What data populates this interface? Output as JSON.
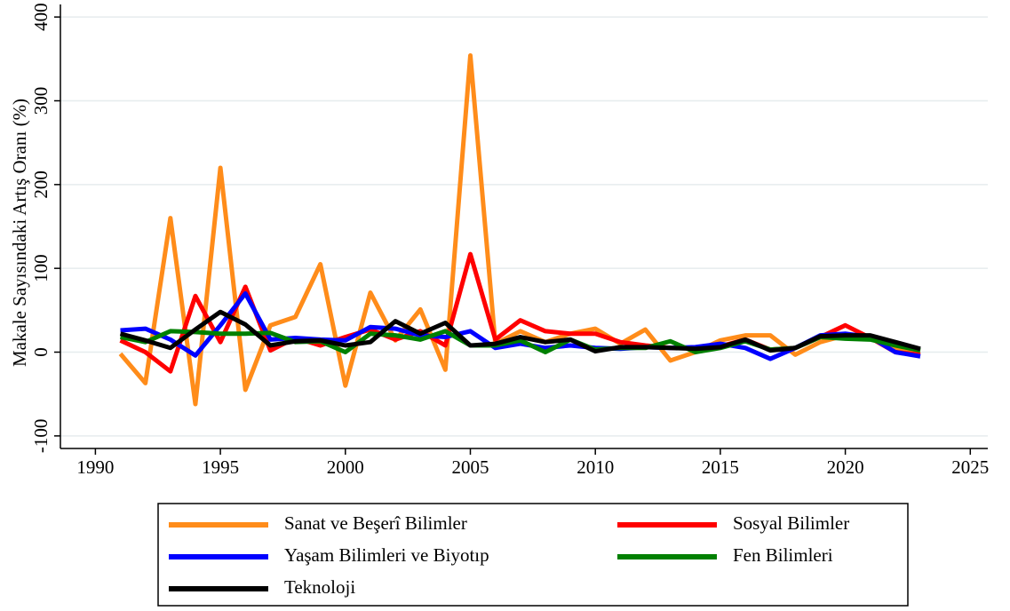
{
  "chart_data": {
    "type": "line",
    "ylabel": "Makale Sayısındaki Artış Oranı (%)",
    "x": [
      1991,
      1992,
      1993,
      1994,
      1995,
      1996,
      1997,
      1998,
      1999,
      2000,
      2001,
      2002,
      2003,
      2004,
      2005,
      2006,
      2007,
      2008,
      2009,
      2010,
      2011,
      2012,
      2013,
      2014,
      2015,
      2016,
      2017,
      2018,
      2019,
      2020,
      2021,
      2022,
      2023
    ],
    "series": [
      {
        "name": "Sanat ve Beşerî Bilimler",
        "color": "#ff8c1a",
        "values": [
          -2,
          -37,
          160,
          -62,
          220,
          -45,
          32,
          42,
          105,
          -40,
          71,
          14,
          51,
          -21,
          354,
          10,
          25,
          12,
          22,
          28,
          10,
          27,
          -10,
          0,
          14,
          20,
          20,
          -3,
          12,
          20,
          17,
          3,
          2
        ]
      },
      {
        "name": "Sosyal Bilimler",
        "color": "#ff0000",
        "values": [
          14,
          0,
          -23,
          67,
          12,
          78,
          2,
          17,
          8,
          18,
          27,
          15,
          25,
          8,
          117,
          15,
          38,
          25,
          22,
          22,
          12,
          8,
          5,
          5,
          7,
          15,
          3,
          5,
          18,
          32,
          17,
          0,
          -3
        ]
      },
      {
        "name": "Yaşam Bilimleri ve Biyotıp",
        "color": "#0000ff",
        "values": [
          26,
          28,
          15,
          -4,
          32,
          70,
          15,
          17,
          15,
          14,
          30,
          28,
          20,
          18,
          25,
          5,
          10,
          5,
          8,
          5,
          4,
          6,
          5,
          6,
          10,
          5,
          -8,
          5,
          20,
          22,
          18,
          0,
          -5
        ]
      },
      {
        "name": "Fen Bilimleri",
        "color": "#008000",
        "values": [
          18,
          12,
          25,
          24,
          22,
          22,
          23,
          12,
          13,
          0,
          22,
          20,
          15,
          25,
          8,
          8,
          14,
          0,
          15,
          3,
          5,
          5,
          13,
          0,
          5,
          13,
          3,
          5,
          18,
          16,
          15,
          8,
          2
        ]
      },
      {
        "name": "Teknoloji",
        "color": "#000000",
        "values": [
          22,
          14,
          5,
          27,
          48,
          33,
          8,
          13,
          14,
          8,
          12,
          37,
          22,
          35,
          8,
          10,
          18,
          12,
          15,
          1,
          6,
          6,
          5,
          4,
          6,
          15,
          2,
          5,
          19,
          20,
          20,
          12,
          4
        ]
      }
    ],
    "xlim": [
      1988.6,
      2025.7
    ],
    "xticks": [
      1990,
      1995,
      2000,
      2005,
      2010,
      2015,
      2020,
      2025
    ],
    "ylim": [
      -115,
      415
    ],
    "yticks": [
      -100,
      0,
      100,
      200,
      300,
      400
    ],
    "grid": true,
    "legend": "bottom"
  }
}
